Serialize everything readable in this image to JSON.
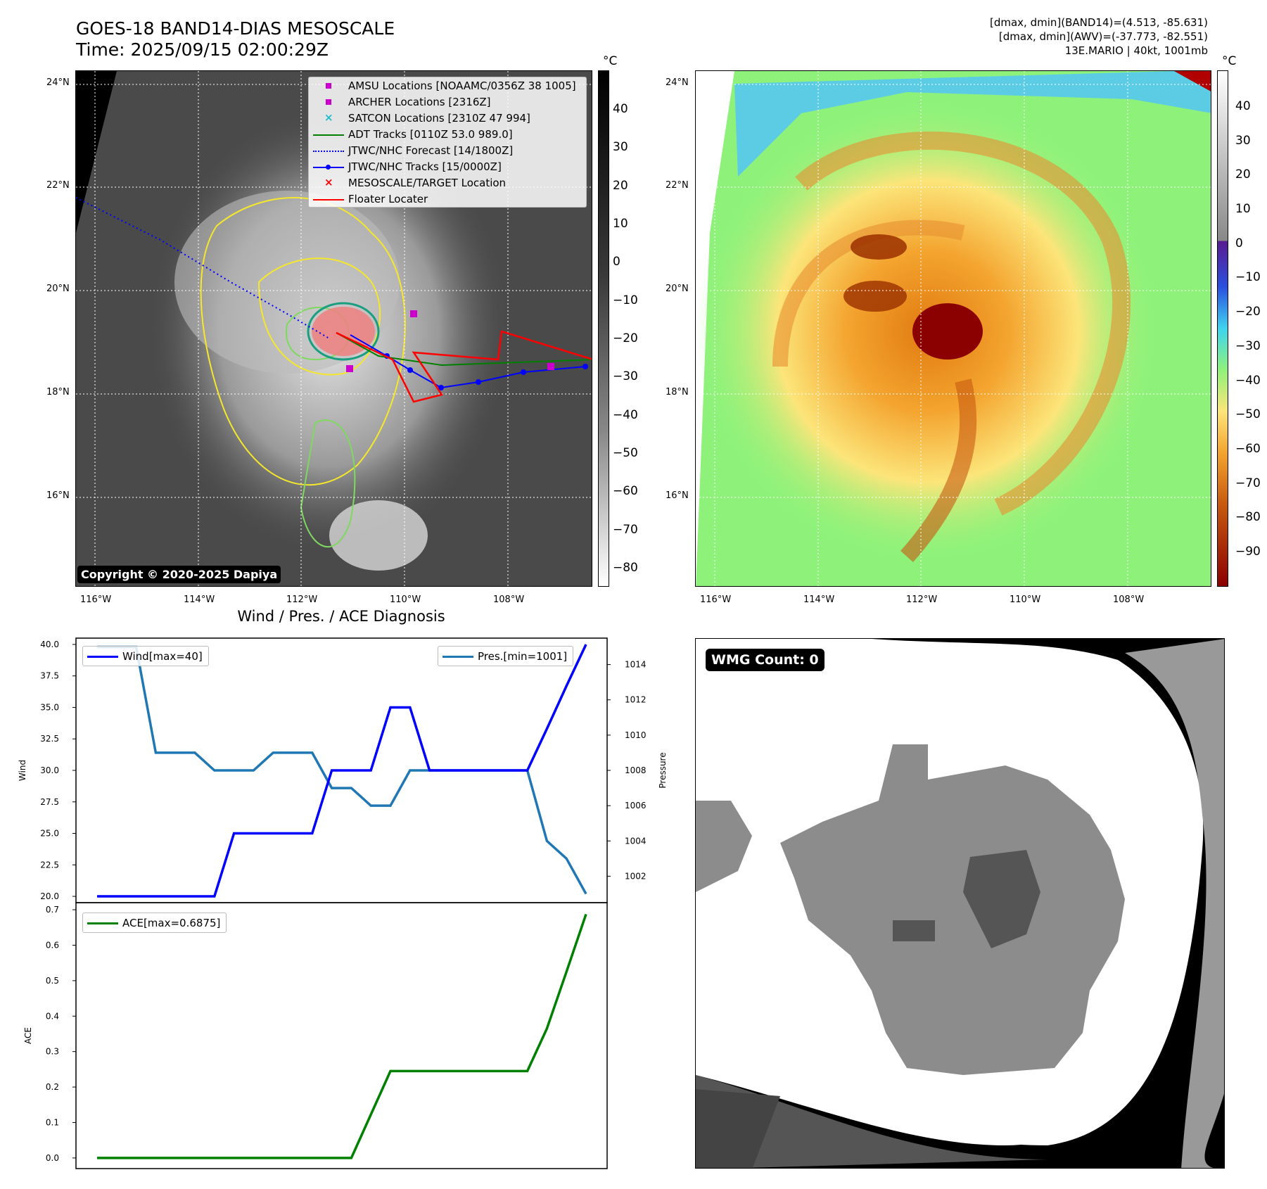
{
  "header": {
    "title_line1": "GOES-18 BAND14-DIAS MESOSCALE",
    "title_line2": "Time: 2025/09/15 02:00:29Z",
    "right_line1": "[dmax, dmin](BAND14)=(4.513, -85.631)",
    "right_line2": "[dmax, dmin](AWV)=(-37.773, -82.551)",
    "right_line3": "13E.MARIO | 40kt, 1001mb"
  },
  "map_axes": {
    "lat_labels": [
      "24°N",
      "22°N",
      "20°N",
      "18°N",
      "16°N"
    ],
    "lon_labels_left": [
      "116°W",
      "114°W",
      "112°W",
      "110°W",
      "108°W"
    ],
    "lon_labels_right": [
      "116°W",
      "114°W",
      "112°W",
      "110°W",
      "108°W"
    ]
  },
  "colorbar_left": {
    "unit": "°C",
    "ticks": [
      "40",
      "30",
      "20",
      "10",
      "0",
      "−10",
      "−20",
      "−30",
      "−40",
      "−50",
      "−60",
      "−70",
      "−80"
    ]
  },
  "colorbar_right": {
    "unit": "°C",
    "ticks": [
      "40",
      "30",
      "20",
      "10",
      "0",
      "−10",
      "−20",
      "−30",
      "−40",
      "−50",
      "−60",
      "−70",
      "−80",
      "−90"
    ]
  },
  "legend": {
    "amsu": "AMSU Locations [NOAAMC/0356Z 38 1005]",
    "archer": "ARCHER Locations [2316Z]",
    "satcon": "SATCON Locations [2310Z 47 994]",
    "adt": "ADT Tracks [0110Z 53.0 989.0]",
    "jtwc_forecast": "JTWC/NHC Forecast [14/1800Z]",
    "jtwc_tracks": "JTWC/NHC Tracks [15/0000Z]",
    "mesoscale": "MESOSCALE/TARGET Location",
    "floater": "Floater Locater"
  },
  "copyright": "Copyright © 2020-2025 Dapiya",
  "wmg_label": "WMG Count: 0",
  "diag_title": "Wind / Pres. / ACE Diagnosis",
  "colors": {
    "wind": "#0000ff",
    "pressure": "#1f77b4",
    "ace": "#008000",
    "amsu": "#cc00cc",
    "adt": "#008000",
    "jtwc": "#0000ff",
    "floater": "#ff0000"
  },
  "chart_data": [
    {
      "type": "line",
      "title": "Wind / Pres. / ACE Diagnosis",
      "x_index": [
        0,
        1,
        2,
        3,
        4,
        5,
        6,
        7,
        8,
        9,
        10,
        11,
        12,
        13,
        14,
        15,
        16,
        17,
        18,
        19,
        20,
        21,
        22,
        23,
        24,
        25
      ],
      "ylabel": "Wind",
      "y2label": "Pressure",
      "ylim": [
        19.5,
        40.5
      ],
      "y2lim": [
        1000.5,
        1015.5
      ],
      "yticks": [
        "20.0",
        "22.5",
        "25.0",
        "27.5",
        "30.0",
        "32.5",
        "35.0",
        "37.5",
        "40.0"
      ],
      "y2ticks": [
        "1002",
        "1004",
        "1006",
        "1008",
        "1010",
        "1012",
        "1014"
      ],
      "series": [
        {
          "name": "Wind[max=40]",
          "axis": "left",
          "values": [
            20,
            20,
            20,
            20,
            20,
            20,
            20,
            25,
            25,
            25,
            25,
            25,
            30,
            30,
            30,
            35,
            35,
            30,
            30,
            30,
            30,
            30,
            30,
            33.3,
            36.7,
            40
          ]
        },
        {
          "name": "Pres.[min=1001]",
          "axis": "right",
          "values": [
            1015,
            1015,
            1015,
            1009,
            1009,
            1009,
            1008,
            1008,
            1008,
            1009,
            1009,
            1009,
            1007,
            1007,
            1006,
            1006,
            1008,
            1008,
            1008,
            1008,
            1008,
            1008,
            1008,
            1004,
            1003,
            1001
          ]
        }
      ]
    },
    {
      "type": "line",
      "ylabel": "ACE",
      "ylim": [
        -0.03,
        0.72
      ],
      "yticks": [
        "0.0",
        "0.1",
        "0.2",
        "0.3",
        "0.4",
        "0.5",
        "0.6",
        "0.7"
      ],
      "x_index": [
        0,
        1,
        2,
        3,
        4,
        5,
        6,
        7,
        8,
        9,
        10,
        11,
        12,
        13,
        14,
        15,
        16,
        17,
        18,
        19,
        20,
        21,
        22,
        23,
        24,
        25
      ],
      "series": [
        {
          "name": "ACE[max=0.6875]",
          "values": [
            0,
            0,
            0,
            0,
            0,
            0,
            0,
            0,
            0,
            0,
            0,
            0,
            0,
            0,
            0.1225,
            0.245,
            0.245,
            0.245,
            0.245,
            0.245,
            0.245,
            0.245,
            0.245,
            0.365,
            0.525,
            0.6875
          ]
        }
      ]
    }
  ]
}
